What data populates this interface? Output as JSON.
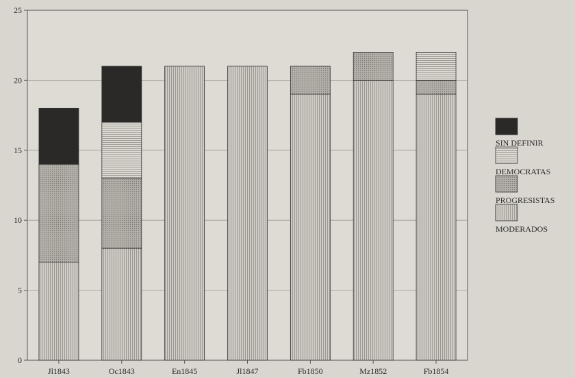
{
  "chart_data": {
    "type": "bar",
    "stacked": true,
    "categories": [
      "Jl1843",
      "Oc1843",
      "En1845",
      "Jl1847",
      "Fb1850",
      "Mz1852",
      "Fb1854"
    ],
    "series": [
      {
        "name": "MODERADOS",
        "values": [
          7,
          8,
          21,
          21,
          19,
          20,
          19
        ]
      },
      {
        "name": "PROGRESISTAS",
        "values": [
          7,
          5,
          0,
          0,
          2,
          2,
          1
        ]
      },
      {
        "name": "DEMOCRATAS",
        "values": [
          0,
          4,
          0,
          0,
          0,
          0,
          2
        ]
      },
      {
        "name": "SIN DEFINIR",
        "values": [
          4,
          4,
          0,
          0,
          0,
          0,
          0
        ]
      }
    ],
    "ylim": [
      0,
      25
    ],
    "yticks": [
      0,
      5,
      10,
      15,
      20,
      25
    ],
    "grid": true,
    "legend": "right",
    "colors": {
      "background": "#d9d5cf",
      "plot_background": "#dedad4",
      "axis": "#555555",
      "grid": "#9a9690",
      "MODERADOS": "#c9c5bf",
      "PROGRESISTAS": "#a7a39d",
      "DEMOCRATAS": "#d4d0ca",
      "SIN DEFINIR": "#2b2828"
    }
  }
}
